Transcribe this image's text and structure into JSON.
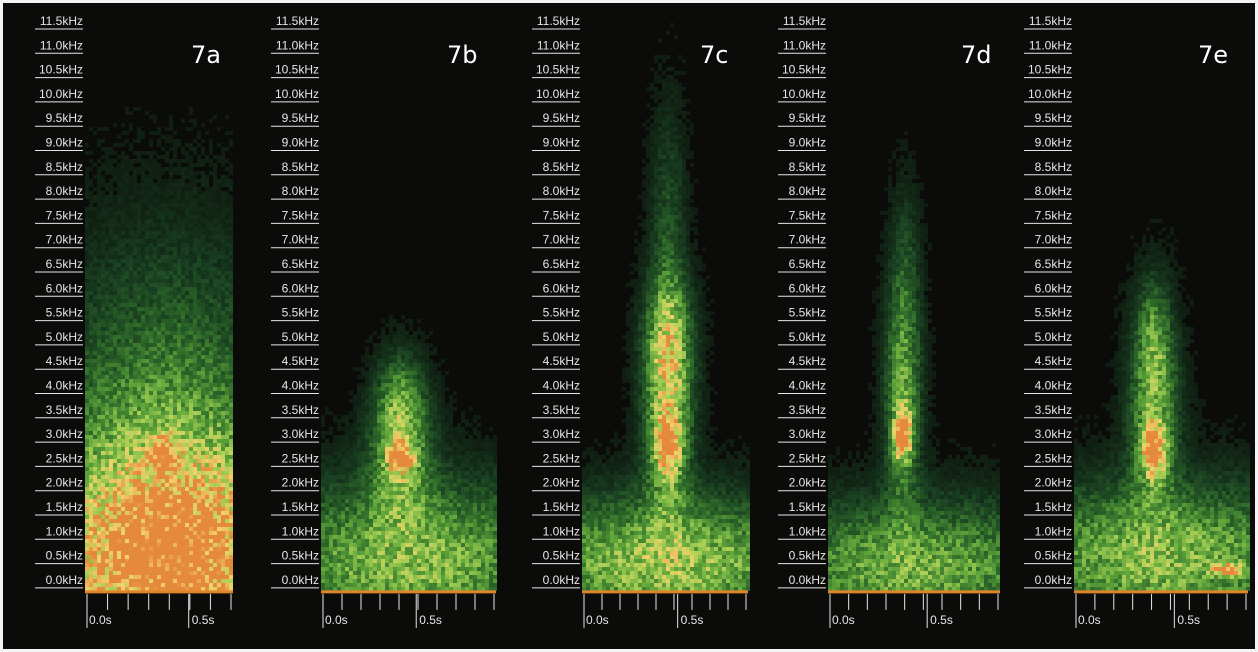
{
  "figure": {
    "background_color": "#0b0c0a",
    "label_color": "#e6e6e6",
    "baseline_color": "#e0862a",
    "colormap": [
      "#0b0c0a",
      "#173a1f",
      "#2f6b2a",
      "#5ea33a",
      "#a8cf55",
      "#f2d26b",
      "#e58a3c"
    ]
  },
  "chart_data": [
    {
      "type": "heatmap",
      "subtype": "spectrogram",
      "panel_label": "7a",
      "y_ticks": [
        "11.5kHz",
        "11.0kHz",
        "10.5kHz",
        "10.0kHz",
        "9.5kHz",
        "9.0kHz",
        "8.5kHz",
        "8.0kHz",
        "7.5kHz",
        "7.0kHz",
        "6.5kHz",
        "6.0kHz",
        "5.5kHz",
        "5.0kHz",
        "4.5kHz",
        "4.0kHz",
        "3.5kHz",
        "3.0kHz",
        "2.5kHz",
        "2.0kHz",
        "1.5kHz",
        "1.0kHz",
        "0.5kHz",
        "0.0kHz"
      ],
      "x_ticks": [
        "0.0s",
        "0.5s"
      ],
      "ylim_khz": [
        0,
        11.5
      ],
      "xlim_s": [
        0,
        0.7
      ],
      "minor_tick_count": 7,
      "energy_blobs": [
        {
          "t": 0.38,
          "f_khz": 0.5,
          "sigma_t": 0.42,
          "sigma_f": 1.4,
          "intensity": 0.85
        },
        {
          "t": 0.38,
          "f_khz": 2.0,
          "sigma_t": 0.4,
          "sigma_f": 2.0,
          "intensity": 0.45
        },
        {
          "t": 0.38,
          "f_khz": 5.0,
          "sigma_t": 0.4,
          "sigma_f": 2.0,
          "intensity": 0.15
        },
        {
          "t": 0.37,
          "f_khz": 2.8,
          "sigma_t": 0.04,
          "sigma_f": 0.25,
          "intensity": 0.55
        }
      ]
    },
    {
      "type": "heatmap",
      "subtype": "spectrogram",
      "panel_label": "7b",
      "y_ticks": [
        "11.5kHz",
        "11.0kHz",
        "10.5kHz",
        "10.0kHz",
        "9.5kHz",
        "9.0kHz",
        "8.5kHz",
        "8.0kHz",
        "7.5kHz",
        "7.0kHz",
        "6.5kHz",
        "6.0kHz",
        "5.5kHz",
        "5.0kHz",
        "4.5kHz",
        "4.0kHz",
        "3.5kHz",
        "3.0kHz",
        "2.5kHz",
        "2.0kHz",
        "1.5kHz",
        "1.0kHz",
        "0.5kHz",
        "0.0kHz"
      ],
      "x_ticks": [
        "0.0s",
        "0.5s"
      ],
      "ylim_khz": [
        0,
        11.5
      ],
      "xlim_s": [
        0,
        0.9
      ],
      "minor_tick_count": 9,
      "energy_blobs": [
        {
          "t": 0.45,
          "f_khz": 0.6,
          "sigma_t": 0.55,
          "sigma_f": 1.1,
          "intensity": 0.55
        },
        {
          "t": 0.4,
          "f_khz": 2.9,
          "sigma_t": 0.1,
          "sigma_f": 0.9,
          "intensity": 0.55
        },
        {
          "t": 0.4,
          "f_khz": 2.75,
          "sigma_t": 0.04,
          "sigma_f": 0.2,
          "intensity": 0.7
        },
        {
          "t": 0.4,
          "f_khz": 4.0,
          "sigma_t": 0.08,
          "sigma_f": 0.6,
          "intensity": 0.25
        }
      ]
    },
    {
      "type": "heatmap",
      "subtype": "spectrogram",
      "panel_label": "7c",
      "y_ticks": [
        "11.5kHz",
        "11.0kHz",
        "10.5kHz",
        "10.0kHz",
        "9.5kHz",
        "9.0kHz",
        "8.5kHz",
        "8.0kHz",
        "7.5kHz",
        "7.0kHz",
        "6.5kHz",
        "6.0kHz",
        "5.5kHz",
        "5.0kHz",
        "4.5kHz",
        "4.0kHz",
        "3.5kHz",
        "3.0kHz",
        "2.5kHz",
        "2.0kHz",
        "1.5kHz",
        "1.0kHz",
        "0.5kHz",
        "0.0kHz"
      ],
      "x_ticks": [
        "0.0s",
        "0.5s"
      ],
      "ylim_khz": [
        0,
        11.5
      ],
      "xlim_s": [
        0,
        0.85
      ],
      "minor_tick_count": 9,
      "energy_blobs": [
        {
          "t": 0.42,
          "f_khz": 0.6,
          "sigma_t": 0.55,
          "sigma_f": 0.9,
          "intensity": 0.6
        },
        {
          "t": 0.43,
          "f_khz": 3.5,
          "sigma_t": 0.08,
          "sigma_f": 1.3,
          "intensity": 0.6
        },
        {
          "t": 0.43,
          "f_khz": 5.2,
          "sigma_t": 0.08,
          "sigma_f": 0.9,
          "intensity": 0.45
        },
        {
          "t": 0.43,
          "f_khz": 3.0,
          "sigma_t": 0.04,
          "sigma_f": 0.35,
          "intensity": 0.75
        },
        {
          "t": 0.43,
          "f_khz": 7.5,
          "sigma_t": 0.06,
          "sigma_f": 1.6,
          "intensity": 0.18
        }
      ]
    },
    {
      "type": "heatmap",
      "subtype": "spectrogram",
      "panel_label": "7d",
      "y_ticks": [
        "11.5kHz",
        "11.0kHz",
        "10.5kHz",
        "10.0kHz",
        "9.5kHz",
        "9.0kHz",
        "8.5kHz",
        "8.0kHz",
        "7.5kHz",
        "7.0kHz",
        "6.5kHz",
        "6.0kHz",
        "5.5kHz",
        "5.0kHz",
        "4.5kHz",
        "4.0kHz",
        "3.5kHz",
        "3.0kHz",
        "2.5kHz",
        "2.0kHz",
        "1.5kHz",
        "1.0kHz",
        "0.5kHz",
        "0.0kHz"
      ],
      "x_ticks": [
        "0.0s",
        "0.5s"
      ],
      "ylim_khz": [
        0,
        11.5
      ],
      "xlim_s": [
        0,
        0.85
      ],
      "minor_tick_count": 9,
      "energy_blobs": [
        {
          "t": 0.42,
          "f_khz": 0.5,
          "sigma_t": 0.55,
          "sigma_f": 0.9,
          "intensity": 0.5
        },
        {
          "t": 0.36,
          "f_khz": 4.0,
          "sigma_t": 0.06,
          "sigma_f": 1.5,
          "intensity": 0.45
        },
        {
          "t": 0.36,
          "f_khz": 3.2,
          "sigma_t": 0.03,
          "sigma_f": 0.35,
          "intensity": 0.9
        },
        {
          "t": 0.37,
          "f_khz": 6.5,
          "sigma_t": 0.05,
          "sigma_f": 1.2,
          "intensity": 0.15
        }
      ]
    },
    {
      "type": "heatmap",
      "subtype": "spectrogram",
      "panel_label": "7e",
      "y_ticks": [
        "11.5kHz",
        "11.0kHz",
        "10.5kHz",
        "10.0kHz",
        "9.5kHz",
        "9.0kHz",
        "8.5kHz",
        "8.0kHz",
        "7.5kHz",
        "7.0kHz",
        "6.5kHz",
        "6.0kHz",
        "5.5kHz",
        "5.0kHz",
        "4.5kHz",
        "4.0kHz",
        "3.5kHz",
        "3.0kHz",
        "2.5kHz",
        "2.0kHz",
        "1.5kHz",
        "1.0kHz",
        "0.5kHz",
        "0.0kHz"
      ],
      "x_ticks": [
        "0.0s",
        "0.5s"
      ],
      "ylim_khz": [
        0,
        11.5
      ],
      "xlim_s": [
        0,
        0.85
      ],
      "minor_tick_count": 9,
      "energy_blobs": [
        {
          "t": 0.42,
          "f_khz": 0.7,
          "sigma_t": 0.55,
          "sigma_f": 1.0,
          "intensity": 0.55
        },
        {
          "t": 0.38,
          "f_khz": 3.8,
          "sigma_t": 0.08,
          "sigma_f": 1.3,
          "intensity": 0.5
        },
        {
          "t": 0.38,
          "f_khz": 2.9,
          "sigma_t": 0.04,
          "sigma_f": 0.35,
          "intensity": 0.85
        },
        {
          "t": 0.38,
          "f_khz": 5.3,
          "sigma_t": 0.05,
          "sigma_f": 0.7,
          "intensity": 0.25
        },
        {
          "t": 0.74,
          "f_khz": 0.45,
          "sigma_t": 0.05,
          "sigma_f": 0.08,
          "intensity": 0.7
        }
      ]
    }
  ]
}
